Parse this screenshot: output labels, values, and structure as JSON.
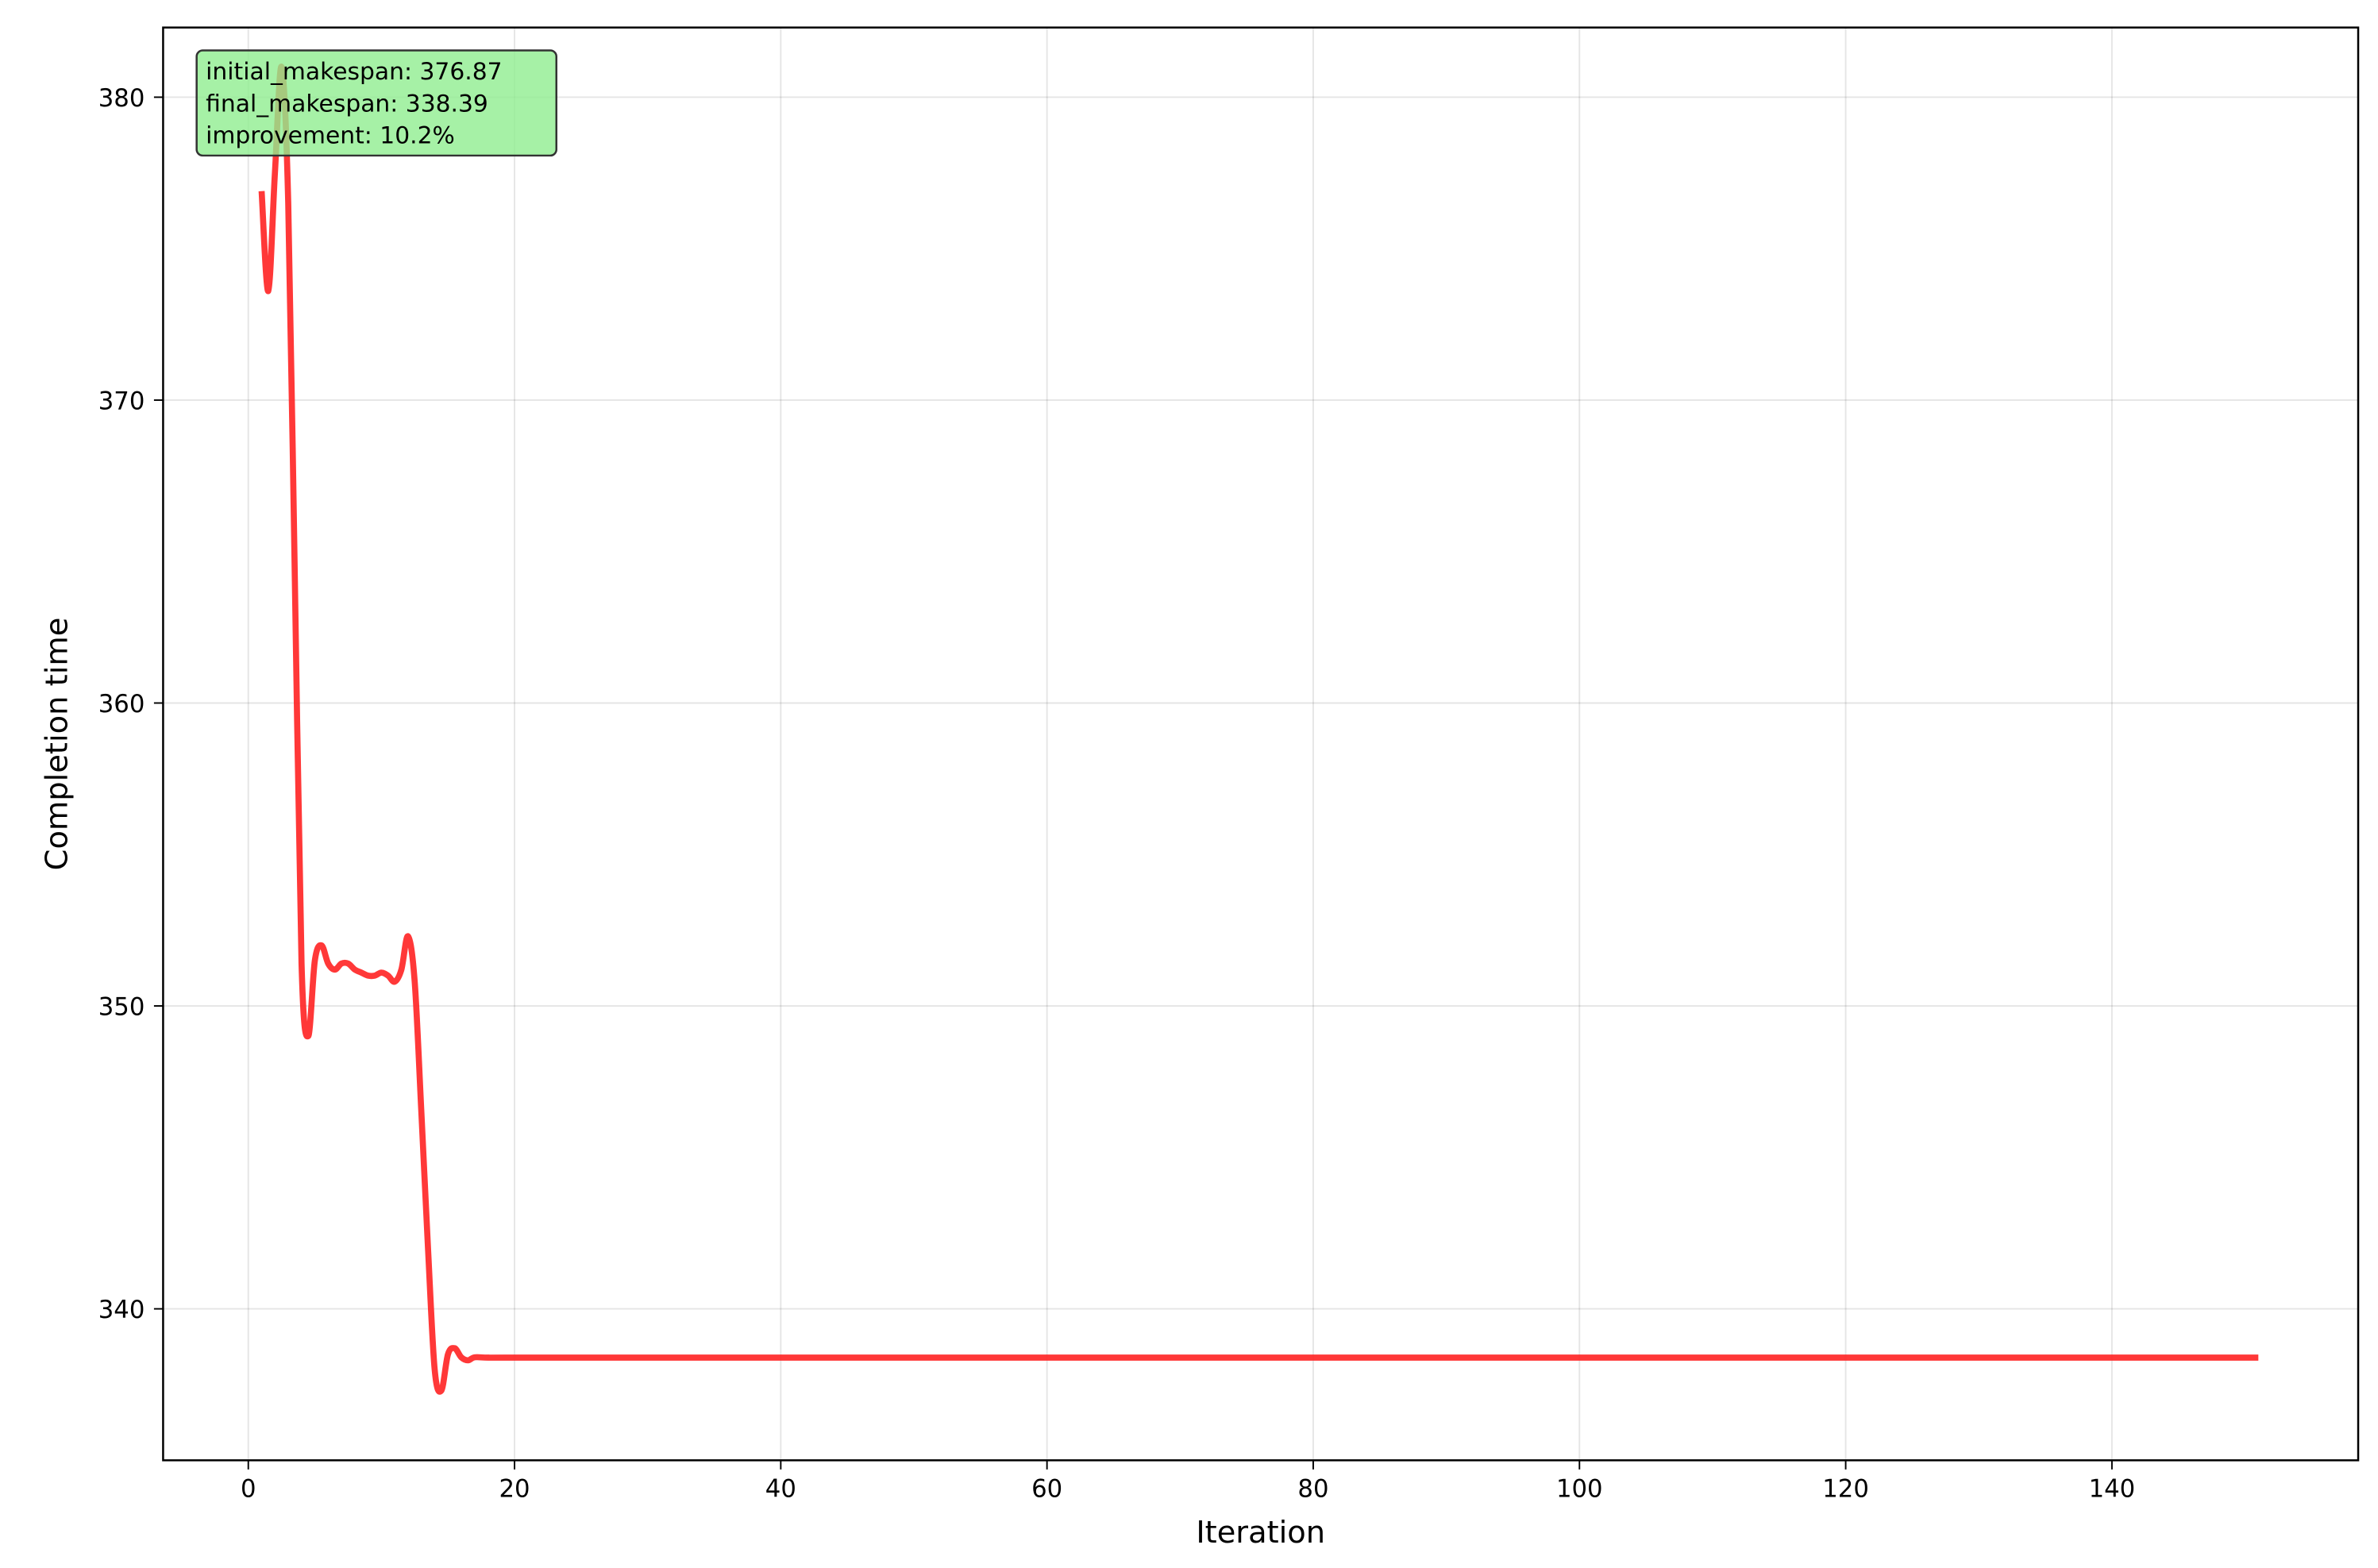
{
  "chart_data": {
    "type": "line",
    "title": "",
    "xlabel": "Iteration",
    "ylabel": "Completion time",
    "xlim": [
      -6.4,
      158.5
    ],
    "ylim": [
      335,
      382.3
    ],
    "xticks": [
      0,
      20,
      40,
      60,
      80,
      100,
      120,
      140
    ],
    "yticks": [
      340,
      350,
      360,
      370,
      380
    ],
    "grid": true,
    "line_color": "#ff2222",
    "series": [
      {
        "x": [
          1,
          1.5,
          2,
          2.5,
          3,
          3.5,
          4,
          4.5,
          5,
          5.5,
          6,
          6.5,
          7,
          7.5,
          8,
          8.5,
          9,
          9.5,
          10,
          10.5,
          11,
          11.5,
          12,
          12.5,
          13,
          13.5,
          14,
          14.5,
          15,
          15.5,
          16,
          16.5,
          17,
          18,
          20,
          40,
          60,
          80,
          100,
          120,
          140,
          151
        ],
        "y": [
          376.9,
          373.6,
          377.5,
          381.0,
          376.5,
          364.0,
          351.4,
          349.0,
          351.5,
          352.0,
          351.4,
          351.2,
          351.4,
          351.4,
          351.2,
          351.1,
          351.0,
          351.0,
          351.1,
          351.0,
          350.8,
          351.2,
          352.3,
          350.8,
          346.5,
          342.0,
          338.0,
          337.3,
          338.5,
          338.7,
          338.4,
          338.3,
          338.4,
          338.39,
          338.39,
          338.39,
          338.39,
          338.39,
          338.39,
          338.39,
          338.39,
          338.39
        ]
      }
    ],
    "annotation": {
      "lines": [
        "initial_makespan: 376.87",
        "final_makespan: 338.39",
        "improvement: 10.2%"
      ],
      "placement": "top-left",
      "background": "#90ee90",
      "border": "#333333"
    }
  }
}
